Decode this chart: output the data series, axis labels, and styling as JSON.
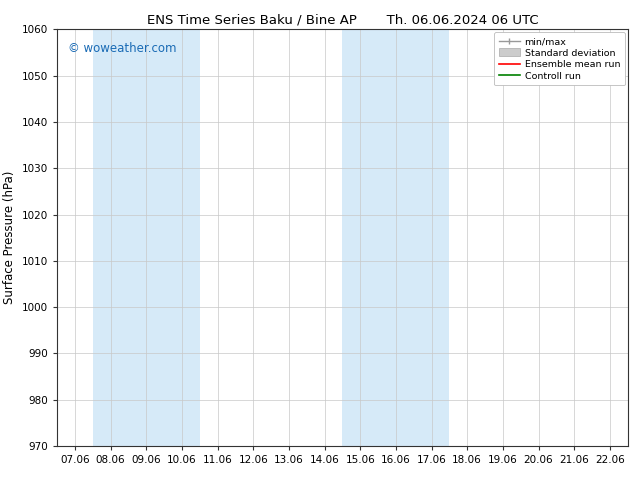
{
  "title_left": "ENS Time Series Baku / Bine AP",
  "title_right": "Th. 06.06.2024 06 UTC",
  "ylabel": "Surface Pressure (hPa)",
  "ylim": [
    970,
    1060
  ],
  "yticks": [
    970,
    980,
    990,
    1000,
    1010,
    1020,
    1030,
    1040,
    1050,
    1060
  ],
  "xtick_labels": [
    "07.06",
    "08.06",
    "09.06",
    "10.06",
    "11.06",
    "12.06",
    "13.06",
    "14.06",
    "15.06",
    "16.06",
    "17.06",
    "18.06",
    "19.06",
    "20.06",
    "21.06",
    "22.06"
  ],
  "xtick_positions": [
    0,
    1,
    2,
    3,
    4,
    5,
    6,
    7,
    8,
    9,
    10,
    11,
    12,
    13,
    14,
    15
  ],
  "xlim": [
    -0.5,
    15.5
  ],
  "shaded_bands": [
    {
      "x_start": 0.5,
      "x_end": 3.5,
      "color": "#d6eaf8"
    },
    {
      "x_start": 7.5,
      "x_end": 10.5,
      "color": "#d6eaf8"
    }
  ],
  "watermark_text": "© woweather.com",
  "watermark_color": "#1a6bb5",
  "background_color": "#ffffff",
  "plot_bg_color": "#ffffff",
  "grid_color": "#c8c8c8",
  "legend_labels": [
    "min/max",
    "Standard deviation",
    "Ensemble mean run",
    "Controll run"
  ],
  "legend_line_colors": [
    "#888888",
    "#bbbbbb",
    "#ff0000",
    "#008000"
  ],
  "title_fontsize": 9.5,
  "tick_fontsize": 7.5,
  "ylabel_fontsize": 8.5,
  "watermark_fontsize": 8.5
}
